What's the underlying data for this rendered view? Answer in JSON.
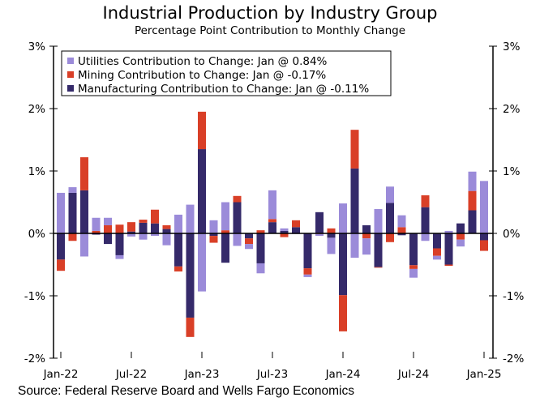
{
  "chart_data": {
    "type": "bar",
    "stacked": true,
    "title": "Industrial Production by Industry Group",
    "subtitle": "Percentage Point Contribution to Monthly Change",
    "source": "Source: Federal Reserve Board and Wells Fargo Economics",
    "ylim": [
      -2,
      3
    ],
    "y_ticks": [
      "3%",
      "2%",
      "1%",
      "0%",
      "-1%",
      "-2%"
    ],
    "y_tick_values": [
      3,
      2,
      1,
      0,
      -1,
      -2
    ],
    "x_tick_labels": [
      "Jan-22",
      "Jul-22",
      "Jan-23",
      "Jul-23",
      "Jan-24",
      "Jul-24",
      "Jan-25"
    ],
    "legend_placement": "top-left",
    "grid": false,
    "categories": [
      "Jan-22",
      "Feb-22",
      "Mar-22",
      "Apr-22",
      "May-22",
      "Jun-22",
      "Jul-22",
      "Aug-22",
      "Sep-22",
      "Oct-22",
      "Nov-22",
      "Dec-22",
      "Jan-23",
      "Feb-23",
      "Mar-23",
      "Apr-23",
      "May-23",
      "Jun-23",
      "Jul-23",
      "Aug-23",
      "Sep-23",
      "Oct-23",
      "Nov-23",
      "Dec-23",
      "Jan-24",
      "Feb-24",
      "Mar-24",
      "Apr-24",
      "May-24",
      "Jun-24",
      "Jul-24",
      "Aug-24",
      "Sep-24",
      "Oct-24",
      "Nov-24",
      "Dec-24",
      "Jan-25"
    ],
    "series": [
      {
        "name": "Manufacturing Contribution to Change: Jan @ -0.11%",
        "color": "#352a6a",
        "values": [
          -0.42,
          0.65,
          0.69,
          -0.02,
          -0.17,
          -0.35,
          0.03,
          0.17,
          0.16,
          0.07,
          -0.53,
          -1.35,
          1.35,
          -0.04,
          -0.47,
          0.5,
          -0.08,
          -0.48,
          0.18,
          0.04,
          0.1,
          -0.56,
          0.34,
          -0.07,
          -0.99,
          1.04,
          0.13,
          -0.54,
          0.49,
          -0.03,
          -0.51,
          0.42,
          -0.24,
          -0.5,
          0.16,
          0.37,
          -0.11
        ]
      },
      {
        "name": "Mining Contribution to Change: Jan @ -0.17%",
        "color": "#d93f27",
        "values": [
          -0.18,
          -0.12,
          0.53,
          0.04,
          0.13,
          0.14,
          0.15,
          0.05,
          0.22,
          0.06,
          -0.08,
          -0.31,
          0.6,
          -0.11,
          0.05,
          0.1,
          -0.09,
          0.05,
          0.05,
          -0.06,
          0.11,
          -0.1,
          -0.01,
          0.08,
          -0.58,
          0.62,
          -0.08,
          -0.01,
          -0.14,
          0.1,
          -0.06,
          0.19,
          -0.12,
          -0.02,
          -0.1,
          0.31,
          -0.17
        ]
      },
      {
        "name": "Utilities Contribution to Change: Jan @ 0.84%",
        "color": "#9b8bd9",
        "values": [
          0.65,
          0.09,
          -0.37,
          0.21,
          0.12,
          -0.06,
          -0.05,
          -0.1,
          -0.04,
          -0.19,
          0.3,
          0.46,
          -0.93,
          0.21,
          0.45,
          -0.2,
          -0.08,
          -0.16,
          0.46,
          0.04,
          -0.01,
          -0.04,
          -0.03,
          -0.26,
          0.48,
          -0.39,
          -0.26,
          0.39,
          0.26,
          0.19,
          -0.14,
          -0.12,
          -0.06,
          0.04,
          -0.11,
          0.31,
          0.84
        ]
      }
    ],
    "legend_order": [
      2,
      1,
      0
    ]
  }
}
